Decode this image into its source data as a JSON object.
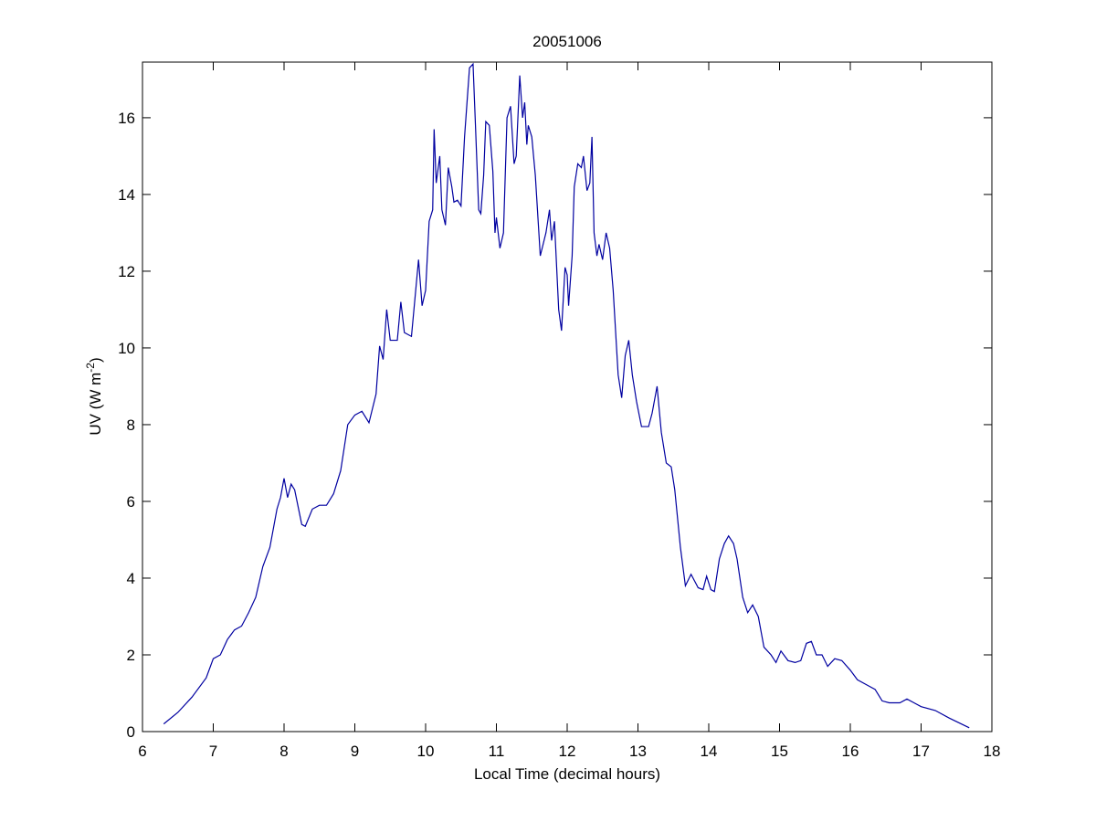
{
  "chart_data": {
    "type": "line",
    "title": "20051006",
    "xlabel": "Local Time (decimal hours)",
    "ylabel": [
      "UV (W m",
      "-2",
      ")"
    ],
    "xlim": [
      6,
      18
    ],
    "ylim": [
      0,
      17.45
    ],
    "xticks": [
      6,
      7,
      8,
      9,
      10,
      11,
      12,
      13,
      14,
      15,
      16,
      17,
      18
    ],
    "yticks": [
      0,
      2,
      4,
      6,
      8,
      10,
      12,
      14,
      16
    ],
    "series": [
      {
        "color": "#0000a0",
        "x": [
          6.3,
          6.5,
          6.7,
          6.9,
          7.0,
          7.1,
          7.2,
          7.3,
          7.4,
          7.5,
          7.6,
          7.7,
          7.8,
          7.9,
          7.95,
          8.0,
          8.05,
          8.1,
          8.15,
          8.25,
          8.3,
          8.4,
          8.5,
          8.6,
          8.7,
          8.8,
          8.9,
          9.0,
          9.1,
          9.2,
          9.3,
          9.35,
          9.4,
          9.45,
          9.5,
          9.6,
          9.65,
          9.7,
          9.8,
          9.9,
          9.95,
          10.0,
          10.05,
          10.1,
          10.12,
          10.15,
          10.2,
          10.23,
          10.28,
          10.32,
          10.37,
          10.4,
          10.45,
          10.5,
          10.55,
          10.62,
          10.67,
          10.7,
          10.75,
          10.78,
          10.82,
          10.85,
          10.9,
          10.95,
          10.98,
          11.0,
          11.05,
          11.1,
          11.15,
          11.2,
          11.25,
          11.28,
          11.33,
          11.37,
          11.4,
          11.43,
          11.45,
          11.5,
          11.55,
          11.62,
          11.7,
          11.75,
          11.78,
          11.82,
          11.88,
          11.92,
          11.97,
          12.0,
          12.02,
          12.07,
          12.1,
          12.15,
          12.2,
          12.23,
          12.28,
          12.32,
          12.35,
          12.38,
          12.42,
          12.45,
          12.5,
          12.55,
          12.6,
          12.65,
          12.72,
          12.77,
          12.82,
          12.87,
          12.92,
          12.98,
          13.05,
          13.15,
          13.2,
          13.27,
          13.33,
          13.4,
          13.47,
          13.52,
          13.6,
          13.67,
          13.75,
          13.85,
          13.92,
          13.97,
          14.03,
          14.08,
          14.15,
          14.22,
          14.28,
          14.35,
          14.4,
          14.48,
          14.55,
          14.62,
          14.7,
          14.78,
          14.88,
          14.95,
          15.02,
          15.12,
          15.22,
          15.3,
          15.38,
          15.45,
          15.52,
          15.6,
          15.68,
          15.78,
          15.88,
          16.0,
          16.1,
          16.25,
          16.35,
          16.45,
          16.55,
          16.7,
          16.8,
          16.9,
          17.0,
          17.2,
          17.4,
          17.68
        ],
        "values": [
          0.2,
          0.5,
          0.9,
          1.4,
          1.9,
          2.0,
          2.4,
          2.65,
          2.75,
          3.1,
          3.5,
          4.3,
          4.8,
          5.8,
          6.1,
          6.6,
          6.1,
          6.45,
          6.3,
          5.4,
          5.35,
          5.8,
          5.9,
          5.9,
          6.2,
          6.8,
          8.0,
          8.25,
          8.35,
          8.05,
          8.8,
          10.05,
          9.7,
          11.0,
          10.2,
          10.2,
          11.2,
          10.4,
          10.3,
          12.3,
          11.1,
          11.5,
          13.3,
          13.6,
          15.7,
          14.3,
          15.0,
          13.6,
          13.2,
          14.7,
          14.2,
          13.8,
          13.85,
          13.7,
          15.5,
          17.3,
          17.4,
          16.0,
          13.6,
          13.5,
          14.5,
          15.9,
          15.8,
          14.6,
          13.0,
          13.4,
          12.6,
          13.0,
          16.0,
          16.3,
          14.8,
          15.0,
          17.1,
          16.0,
          16.4,
          15.3,
          15.8,
          15.5,
          14.5,
          12.4,
          13.0,
          13.6,
          12.8,
          13.3,
          11.0,
          10.45,
          12.1,
          11.9,
          11.1,
          12.4,
          14.2,
          14.8,
          14.7,
          15.0,
          14.1,
          14.3,
          15.5,
          13.0,
          12.4,
          12.7,
          12.3,
          13.0,
          12.6,
          11.5,
          9.3,
          8.7,
          9.8,
          10.2,
          9.3,
          8.6,
          7.95,
          7.95,
          8.3,
          9.0,
          7.8,
          7.0,
          6.9,
          6.3,
          4.8,
          3.8,
          4.1,
          3.75,
          3.7,
          4.05,
          3.7,
          3.65,
          4.5,
          4.9,
          5.1,
          4.9,
          4.5,
          3.5,
          3.1,
          3.3,
          3.0,
          2.2,
          2.0,
          1.8,
          2.1,
          1.85,
          1.8,
          1.85,
          2.3,
          2.35,
          2.0,
          2.0,
          1.7,
          1.9,
          1.85,
          1.6,
          1.35,
          1.2,
          1.1,
          0.8,
          0.75,
          0.75,
          0.85,
          0.75,
          0.65,
          0.55,
          0.35,
          0.1
        ]
      }
    ]
  }
}
